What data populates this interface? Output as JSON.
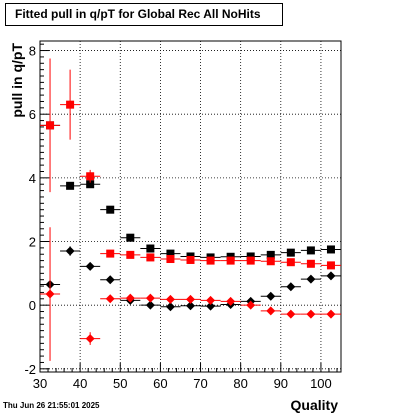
{
  "chart_data": {
    "type": "scatter",
    "title": "Fitted pull in q/pT for Global Rec All NoHits",
    "xlabel": "Quality",
    "ylabel": "pull in q/pT",
    "xlim": [
      30,
      105
    ],
    "ylim": [
      -2.1,
      8.3
    ],
    "xticks": [
      30,
      40,
      50,
      60,
      70,
      80,
      90,
      100
    ],
    "yticks": [
      -2,
      0,
      2,
      4,
      6,
      8
    ],
    "grid": true,
    "series": [
      {
        "marker": "square",
        "color": "#000000",
        "x": [
          32.5,
          37.5,
          42.5,
          47.5,
          52.5,
          57.5,
          62.5,
          67.5,
          72.5,
          77.5,
          82.5,
          87.5,
          92.5,
          97.5,
          102.5
        ],
        "y": [
          5.65,
          3.75,
          3.8,
          3.0,
          2.12,
          1.78,
          1.62,
          1.53,
          1.5,
          1.52,
          1.53,
          1.58,
          1.65,
          1.72,
          1.75
        ],
        "yerr": [
          0.05,
          0.05,
          0.05,
          0.04,
          0.03,
          0.02,
          0.02,
          0.02,
          0.02,
          0.02,
          0.02,
          0.02,
          0.02,
          0.02,
          0.02
        ]
      },
      {
        "marker": "square",
        "color": "#ff0000",
        "x": [
          32.5,
          37.5,
          42.5,
          47.5,
          52.5,
          57.5,
          62.5,
          67.5,
          72.5,
          77.5,
          82.5,
          87.5,
          92.5,
          97.5,
          102.5
        ],
        "y": [
          5.65,
          6.3,
          4.05,
          1.62,
          1.58,
          1.5,
          1.45,
          1.42,
          1.4,
          1.4,
          1.4,
          1.38,
          1.35,
          1.3,
          1.25
        ],
        "yerr": [
          2.1,
          1.1,
          0.2,
          0.04,
          0.03,
          0.02,
          0.02,
          0.02,
          0.02,
          0.02,
          0.02,
          0.02,
          0.02,
          0.02,
          0.02
        ]
      },
      {
        "marker": "diamond",
        "color": "#000000",
        "x": [
          32.5,
          37.5,
          42.5,
          47.5,
          52.5,
          57.5,
          62.5,
          67.5,
          72.5,
          77.5,
          82.5,
          87.5,
          92.5,
          97.5,
          102.5
        ],
        "y": [
          0.65,
          1.7,
          1.22,
          0.8,
          0.15,
          0.0,
          -0.05,
          -0.02,
          -0.03,
          0.02,
          0.12,
          0.28,
          0.58,
          0.82,
          0.92
        ],
        "yerr": [
          0.05,
          0.15,
          0.05,
          0.04,
          0.03,
          0.02,
          0.02,
          0.02,
          0.02,
          0.02,
          0.02,
          0.02,
          0.02,
          0.02,
          0.02
        ]
      },
      {
        "marker": "diamond",
        "color": "#ff0000",
        "x": [
          32.5,
          42.5,
          47.5,
          52.5,
          57.5,
          62.5,
          67.5,
          72.5,
          77.5,
          82.5,
          87.5,
          92.5,
          97.5,
          102.5
        ],
        "y": [
          0.35,
          -1.05,
          0.2,
          0.22,
          0.22,
          0.18,
          0.18,
          0.15,
          0.12,
          0.0,
          -0.18,
          -0.28,
          -0.28,
          -0.28
        ],
        "yerr": [
          2.1,
          0.2,
          0.03,
          0.02,
          0.02,
          0.02,
          0.02,
          0.02,
          0.02,
          0.02,
          0.02,
          0.02,
          0.02,
          0.02
        ]
      }
    ]
  },
  "footer": {
    "timestamp": "Thu Jun 26 21:55:01 2025"
  }
}
